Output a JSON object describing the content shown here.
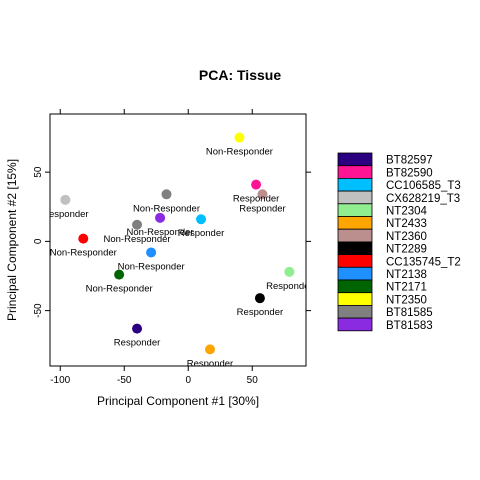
{
  "chart_data": {
    "type": "scatter",
    "title": "PCA: Tissue",
    "xlabel": "Principal Component #1 [30%]",
    "ylabel": "Principal Component #2 [15%]",
    "xlim": [
      -108,
      92
    ],
    "ylim": [
      -90,
      92
    ],
    "x_ticks": [
      -100,
      -50,
      0,
      50
    ],
    "y_ticks": [
      -50,
      0,
      50
    ],
    "legend_position": "right",
    "series": [
      {
        "name": "BT82597",
        "color": "#2a0080",
        "x": -40,
        "y": -63,
        "label": "Responder"
      },
      {
        "name": "BT82590",
        "color": "#ff1493",
        "x": 53,
        "y": 41,
        "label": "Responder"
      },
      {
        "name": "CC106585_T3",
        "color": "#00bfff",
        "x": 10,
        "y": 16,
        "label": "Responder"
      },
      {
        "name": "CX628219_T3",
        "color": "#c0c0c0",
        "x": -96,
        "y": 30,
        "label": "Responder"
      },
      {
        "name": "NT2304",
        "color": "#90ee90",
        "x": 79,
        "y": -22,
        "label": "Responder"
      },
      {
        "name": "NT2433",
        "color": "#ffa500",
        "x": 17,
        "y": -78,
        "label": "Responder"
      },
      {
        "name": "NT2360",
        "color": "#bc8f8f",
        "x": 58,
        "y": 34,
        "label": "Responder"
      },
      {
        "name": "NT2289",
        "color": "#000000",
        "x": 56,
        "y": -41,
        "label": "Responder"
      },
      {
        "name": "CC135745_T2",
        "color": "#ff0000",
        "x": -82,
        "y": 2,
        "label": "Non-Responder"
      },
      {
        "name": "NT2138",
        "color": "#1e90ff",
        "x": -29,
        "y": -8,
        "label": "Non-Responder"
      },
      {
        "name": "NT2171",
        "color": "#006400",
        "x": -54,
        "y": -24,
        "label": "Non-Responder"
      },
      {
        "name": "NT2350",
        "color": "#ffff00",
        "x": 40,
        "y": 75,
        "label": "Non-Responder"
      },
      {
        "name": "BT81585",
        "color": "#808080",
        "x": -17,
        "y": 34,
        "label": "Non-Responder"
      },
      {
        "name": "BT81583",
        "color": "#8a2be2",
        "x": -22,
        "y": 17,
        "label": "Non-Responder"
      },
      {
        "name": "",
        "color": "#808080",
        "x": -40,
        "y": 12,
        "label": "Non-Responder"
      }
    ]
  }
}
